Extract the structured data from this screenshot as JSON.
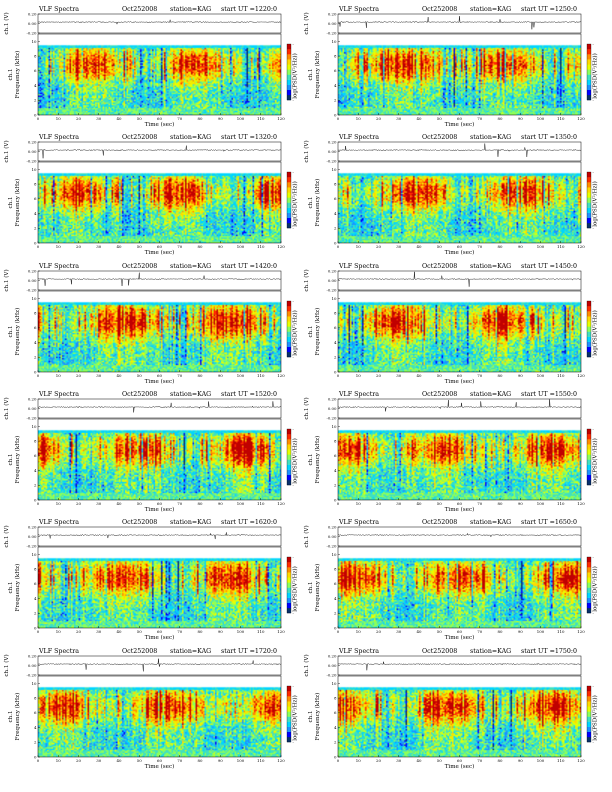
{
  "figure": {
    "background": "#ffffff"
  },
  "labels": {
    "trace_ylabel": "ch.1 (V)",
    "spec_ylabel": "Frequency (kHz)",
    "spec_prefix": "ch.1",
    "xlabel": "Time (sec)",
    "colorbar_label": "log(PSD(V²/Hz))",
    "colorbar_ticks": [
      "-",
      "-",
      "-"
    ]
  },
  "colors": {
    "colormap": [
      "#08306b",
      "#0000ff",
      "#1e90ff",
      "#00d5ff",
      "#40e0c0",
      "#8cff5a",
      "#e6ff00",
      "#ffd800",
      "#ff8c00",
      "#ff2a00",
      "#c00000"
    ],
    "trace": "#000000",
    "axes": "#000000"
  },
  "chart_data": [
    {
      "type": "heatmap",
      "title_left": "VLF Spectra",
      "date": "Oct252008",
      "station": "station=KAG",
      "start": "start UT =1220:0",
      "trace_ticks": [
        "0.20",
        "0.00",
        "-0.20"
      ],
      "trace_ylim": [
        -0.2,
        0.2
      ],
      "x_ticks": [
        0,
        10,
        20,
        30,
        40,
        50,
        60,
        70,
        80,
        90,
        100,
        110,
        120
      ],
      "xlim": [
        0,
        120
      ],
      "y_ticks": [
        0,
        2,
        4,
        6,
        8,
        10
      ],
      "ylim": [
        0,
        11
      ],
      "spectrum_top_khz": 9.5,
      "seed": 11
    },
    {
      "type": "heatmap",
      "title_left": "VLF Spectra",
      "date": "Oct252008",
      "station": "station=KAG",
      "start": "start UT =1250:0",
      "trace_ticks": [
        "0.20",
        "0.00",
        "-0.20"
      ],
      "trace_ylim": [
        -0.2,
        0.2
      ],
      "x_ticks": [
        0,
        10,
        20,
        30,
        40,
        50,
        60,
        70,
        80,
        90,
        100,
        110,
        120
      ],
      "xlim": [
        0,
        120
      ],
      "y_ticks": [
        0,
        2,
        4,
        6,
        8,
        10
      ],
      "ylim": [
        0,
        11
      ],
      "spectrum_top_khz": 9.5,
      "seed": 23
    },
    {
      "type": "heatmap",
      "title_left": "VLF Spectra",
      "date": "Oct252008",
      "station": "station=KAG",
      "start": "start UT =1320:0",
      "trace_ticks": [
        "0.20",
        "0.00",
        "-0.20"
      ],
      "trace_ylim": [
        -0.2,
        0.2
      ],
      "x_ticks": [
        0,
        10,
        20,
        30,
        40,
        50,
        60,
        70,
        80,
        90,
        100,
        110,
        120
      ],
      "xlim": [
        0,
        120
      ],
      "y_ticks": [
        0,
        2,
        4,
        6,
        8,
        10
      ],
      "ylim": [
        0,
        11
      ],
      "spectrum_top_khz": 9.5,
      "seed": 37
    },
    {
      "type": "heatmap",
      "title_left": "VLF Spectra",
      "date": "Oct252008",
      "station": "station=KAG",
      "start": "start UT =1350:0",
      "trace_ticks": [
        "0.20",
        "0.00",
        "-0.20"
      ],
      "trace_ylim": [
        -0.2,
        0.2
      ],
      "x_ticks": [
        0,
        10,
        20,
        30,
        40,
        50,
        60,
        70,
        80,
        90,
        100,
        110,
        120
      ],
      "xlim": [
        0,
        120
      ],
      "y_ticks": [
        0,
        2,
        4,
        6,
        8,
        10
      ],
      "ylim": [
        0,
        11
      ],
      "spectrum_top_khz": 9.5,
      "seed": 41
    },
    {
      "type": "heatmap",
      "title_left": "VLF Spectra",
      "date": "Oct252008",
      "station": "station=KAG",
      "start": "start UT =1420:0",
      "trace_ticks": [
        "0.20",
        "0.00",
        "-0.20"
      ],
      "trace_ylim": [
        -0.2,
        0.2
      ],
      "x_ticks": [
        0,
        10,
        20,
        30,
        40,
        50,
        60,
        70,
        80,
        90,
        100,
        110,
        120
      ],
      "xlim": [
        0,
        120
      ],
      "y_ticks": [
        0,
        2,
        4,
        6,
        8,
        10
      ],
      "ylim": [
        0,
        11
      ],
      "spectrum_top_khz": 9.5,
      "seed": 53
    },
    {
      "type": "heatmap",
      "title_left": "VLF Spectra",
      "date": "Oct252008",
      "station": "station=KAG",
      "start": "start UT =1450:0",
      "trace_ticks": [
        "0.20",
        "0.00",
        "-0.20"
      ],
      "trace_ylim": [
        -0.2,
        0.2
      ],
      "x_ticks": [
        0,
        10,
        20,
        30,
        40,
        50,
        60,
        70,
        80,
        90,
        100,
        110,
        120
      ],
      "xlim": [
        0,
        120
      ],
      "y_ticks": [
        0,
        2,
        4,
        6,
        8,
        10
      ],
      "ylim": [
        0,
        11
      ],
      "spectrum_top_khz": 9.5,
      "seed": 67
    },
    {
      "type": "heatmap",
      "title_left": "VLF Spectra",
      "date": "Oct252008",
      "station": "station=KAG",
      "start": "start UT =1520:0",
      "trace_ticks": [
        "0.20",
        "0.00",
        "-0.20"
      ],
      "trace_ylim": [
        -0.2,
        0.2
      ],
      "x_ticks": [
        0,
        10,
        20,
        30,
        40,
        50,
        60,
        70,
        80,
        90,
        100,
        110,
        120
      ],
      "xlim": [
        0,
        120
      ],
      "y_ticks": [
        0,
        2,
        4,
        6,
        8,
        10
      ],
      "ylim": [
        0,
        11
      ],
      "spectrum_top_khz": 9.5,
      "seed": 71
    },
    {
      "type": "heatmap",
      "title_left": "VLF Spectra",
      "date": "Oct252008",
      "station": "station=KAG",
      "start": "start UT =1550:0",
      "trace_ticks": [
        "0.20",
        "0.00",
        "-0.20"
      ],
      "trace_ylim": [
        -0.2,
        0.2
      ],
      "x_ticks": [
        0,
        10,
        20,
        30,
        40,
        50,
        60,
        70,
        80,
        90,
        100,
        110,
        120
      ],
      "xlim": [
        0,
        120
      ],
      "y_ticks": [
        0,
        2,
        4,
        6,
        8,
        10
      ],
      "ylim": [
        0,
        11
      ],
      "spectrum_top_khz": 9.5,
      "seed": 83
    },
    {
      "type": "heatmap",
      "title_left": "VLF Spectra",
      "date": "Oct252008",
      "station": "station=KAG",
      "start": "start UT =1620:0",
      "trace_ticks": [
        "0.20",
        "0.00",
        "-0.20"
      ],
      "trace_ylim": [
        -0.2,
        0.2
      ],
      "x_ticks": [
        0,
        10,
        20,
        30,
        40,
        50,
        60,
        70,
        80,
        90,
        100,
        110,
        120
      ],
      "xlim": [
        0,
        120
      ],
      "y_ticks": [
        0,
        2,
        4,
        6,
        8,
        10
      ],
      "ylim": [
        0,
        11
      ],
      "spectrum_top_khz": 9.5,
      "seed": 97
    },
    {
      "type": "heatmap",
      "title_left": "VLF Spectra",
      "date": "Oct252008",
      "station": "station=KAG",
      "start": "start UT =1650:0",
      "trace_ticks": [
        "0.20",
        "0.00",
        "-0.20"
      ],
      "trace_ylim": [
        -0.2,
        0.2
      ],
      "x_ticks": [
        0,
        10,
        20,
        30,
        40,
        50,
        60,
        70,
        80,
        90,
        100,
        110,
        120
      ],
      "xlim": [
        0,
        120
      ],
      "y_ticks": [
        0,
        2,
        4,
        6,
        8,
        10
      ],
      "ylim": [
        0,
        11
      ],
      "spectrum_top_khz": 9.5,
      "seed": 101
    },
    {
      "type": "heatmap",
      "title_left": "VLF Spectra",
      "date": "Oct252008",
      "station": "station=KAG",
      "start": "start UT =1720:0",
      "trace_ticks": [
        "0.20",
        "0.00",
        "-0.20"
      ],
      "trace_ylim": [
        -0.2,
        0.2
      ],
      "x_ticks": [
        0,
        10,
        20,
        30,
        40,
        50,
        60,
        70,
        80,
        90,
        100,
        110,
        120
      ],
      "xlim": [
        0,
        120
      ],
      "y_ticks": [
        0,
        2,
        4,
        6,
        8,
        10
      ],
      "ylim": [
        0,
        11
      ],
      "spectrum_top_khz": 9.5,
      "seed": 113
    },
    {
      "type": "heatmap",
      "title_left": "VLF Spectra",
      "date": "Oct252008",
      "station": "station=KAG",
      "start": "start UT =1750:0",
      "trace_ticks": [
        "0.20",
        "0.00",
        "-0.20"
      ],
      "trace_ylim": [
        -0.2,
        0.2
      ],
      "x_ticks": [
        0,
        10,
        20,
        30,
        40,
        50,
        60,
        70,
        80,
        90,
        100,
        110,
        120
      ],
      "xlim": [
        0,
        120
      ],
      "y_ticks": [
        0,
        2,
        4,
        6,
        8,
        10
      ],
      "ylim": [
        0,
        11
      ],
      "spectrum_top_khz": 9.5,
      "seed": 127
    }
  ]
}
